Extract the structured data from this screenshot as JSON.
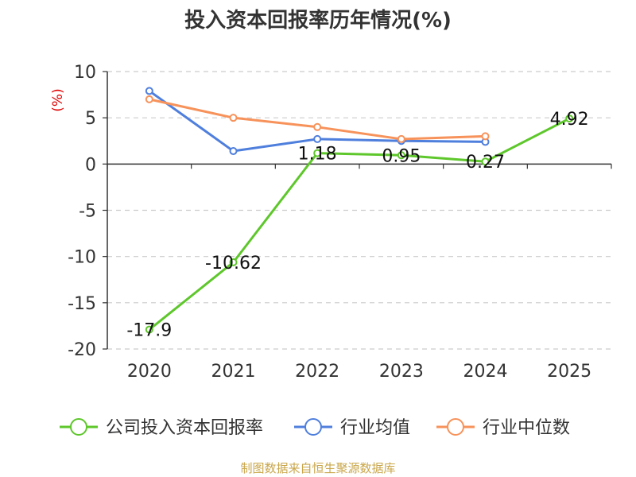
{
  "chart_data": {
    "type": "line",
    "title": "投入资本回报率历年情况(%)",
    "ylabel": "(%)",
    "xlabel": "",
    "categories": [
      "2020",
      "2021",
      "2022",
      "2023",
      "2024",
      "2025"
    ],
    "ylim": [
      -20,
      10
    ],
    "yticks": [
      10,
      5,
      0,
      -5,
      -10,
      -15,
      -20
    ],
    "grid": true,
    "legend_position": "bottom",
    "series": [
      {
        "name": "公司投入资本回报率",
        "color": "#5ec72b",
        "values": [
          -17.9,
          -10.62,
          1.18,
          0.95,
          0.27,
          4.92
        ],
        "labels": [
          "-17.9",
          "-10.62",
          "1.18",
          "0.95",
          "0.27",
          "4.92"
        ]
      },
      {
        "name": "行业均值",
        "color": "#4f7fdd",
        "values": [
          7.9,
          1.4,
          2.7,
          2.5,
          2.4,
          null
        ]
      },
      {
        "name": "行业中位数",
        "color": "#f7925a",
        "values": [
          7.0,
          5.0,
          4.0,
          2.7,
          3.0,
          null
        ]
      }
    ]
  },
  "footer": {
    "source": "制图数据来自恒生聚源数据库"
  }
}
